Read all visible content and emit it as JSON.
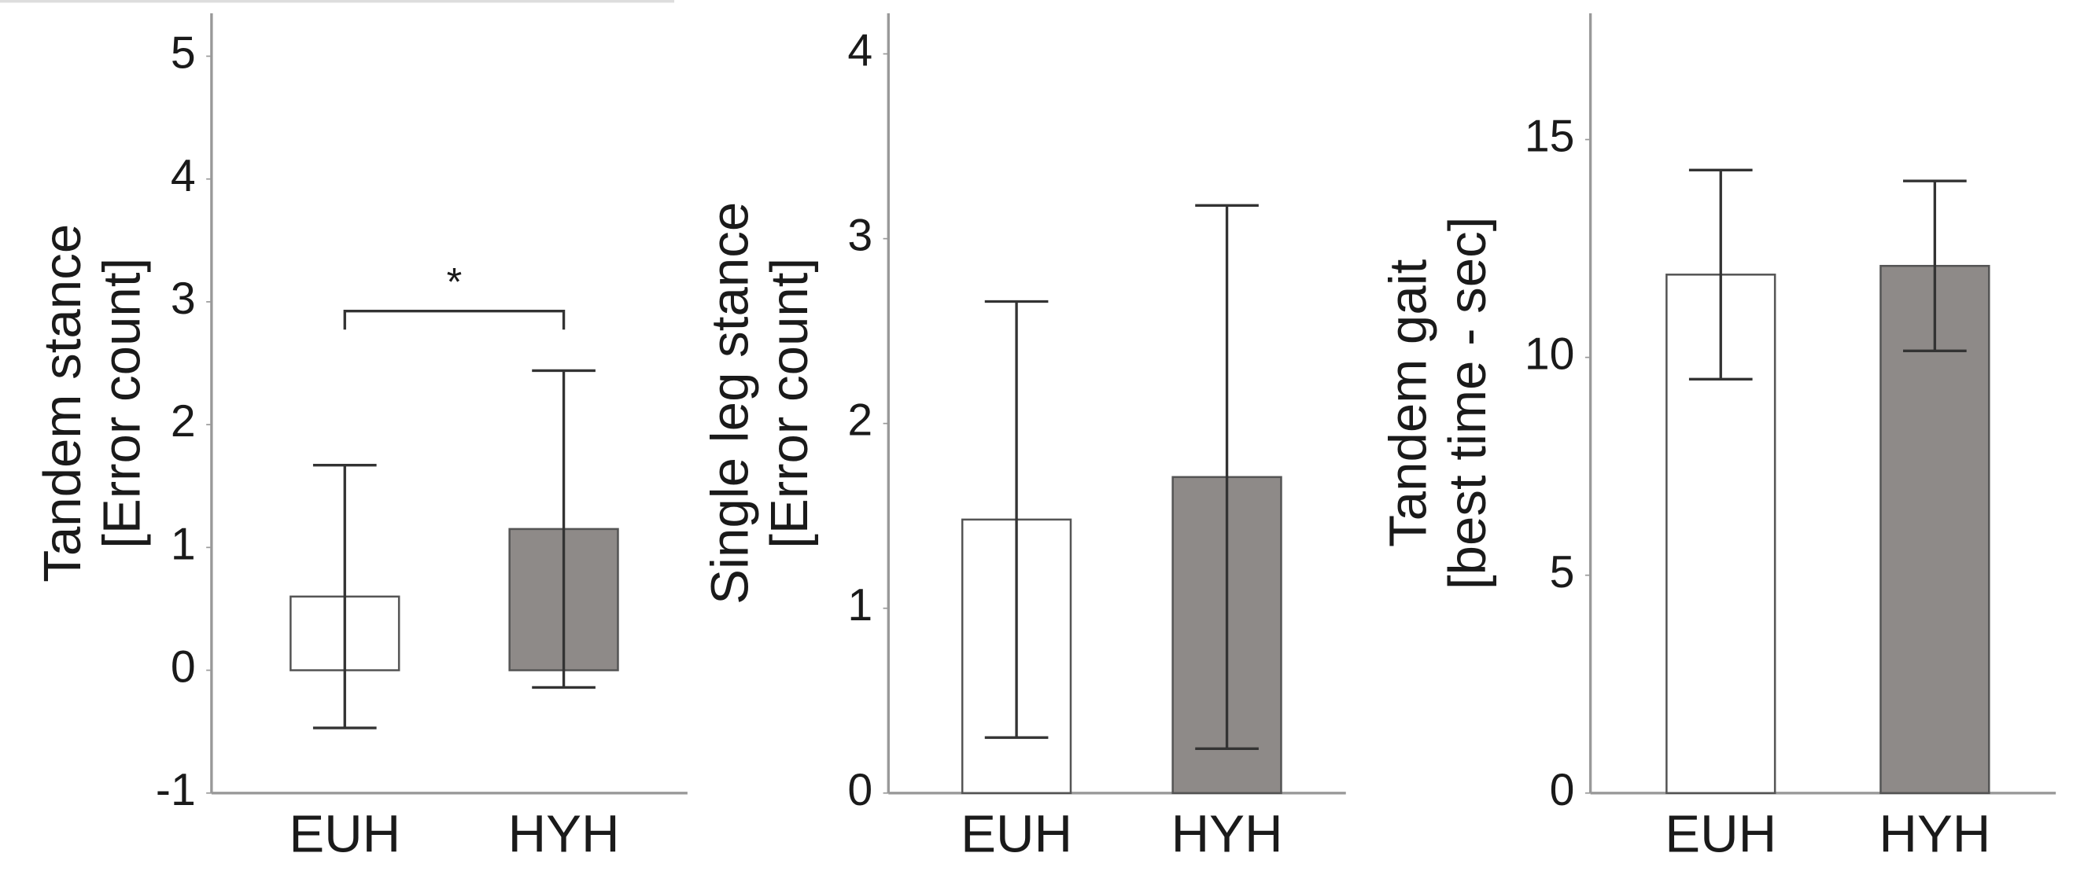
{
  "chart_data": [
    {
      "type": "bar",
      "ylabel": [
        "Tandem stance",
        "[Error count]"
      ],
      "categories": [
        "EUH",
        "HYH"
      ],
      "values": [
        0.6,
        1.15
      ],
      "errors": [
        1.07,
        1.29
      ],
      "colors": [
        "#ffffff",
        "#8e8a88"
      ],
      "ylim": [
        -1,
        5.35
      ],
      "yticks": [
        -1,
        0,
        1,
        2,
        3,
        4,
        5
      ],
      "annotation": "*"
    },
    {
      "type": "bar",
      "ylabel": [
        "Single leg stance",
        "[Error count]"
      ],
      "categories": [
        "EUH",
        "HYH"
      ],
      "values": [
        1.48,
        1.71
      ],
      "errors": [
        1.18,
        1.47
      ],
      "colors": [
        "#ffffff",
        "#8e8a88"
      ],
      "ylim": [
        0,
        4.22
      ],
      "yticks": [
        0,
        1,
        2,
        3,
        4
      ]
    },
    {
      "type": "bar",
      "ylabel": [
        "Tandem gait",
        "[best time - sec]"
      ],
      "categories": [
        "EUH",
        "HYH"
      ],
      "values": [
        11.9,
        12.1
      ],
      "errors": [
        2.4,
        1.95
      ],
      "colors": [
        "#ffffff",
        "#8e8a88"
      ],
      "ylim": [
        0,
        17.9
      ],
      "yticks": [
        0,
        5,
        10,
        15
      ]
    }
  ]
}
